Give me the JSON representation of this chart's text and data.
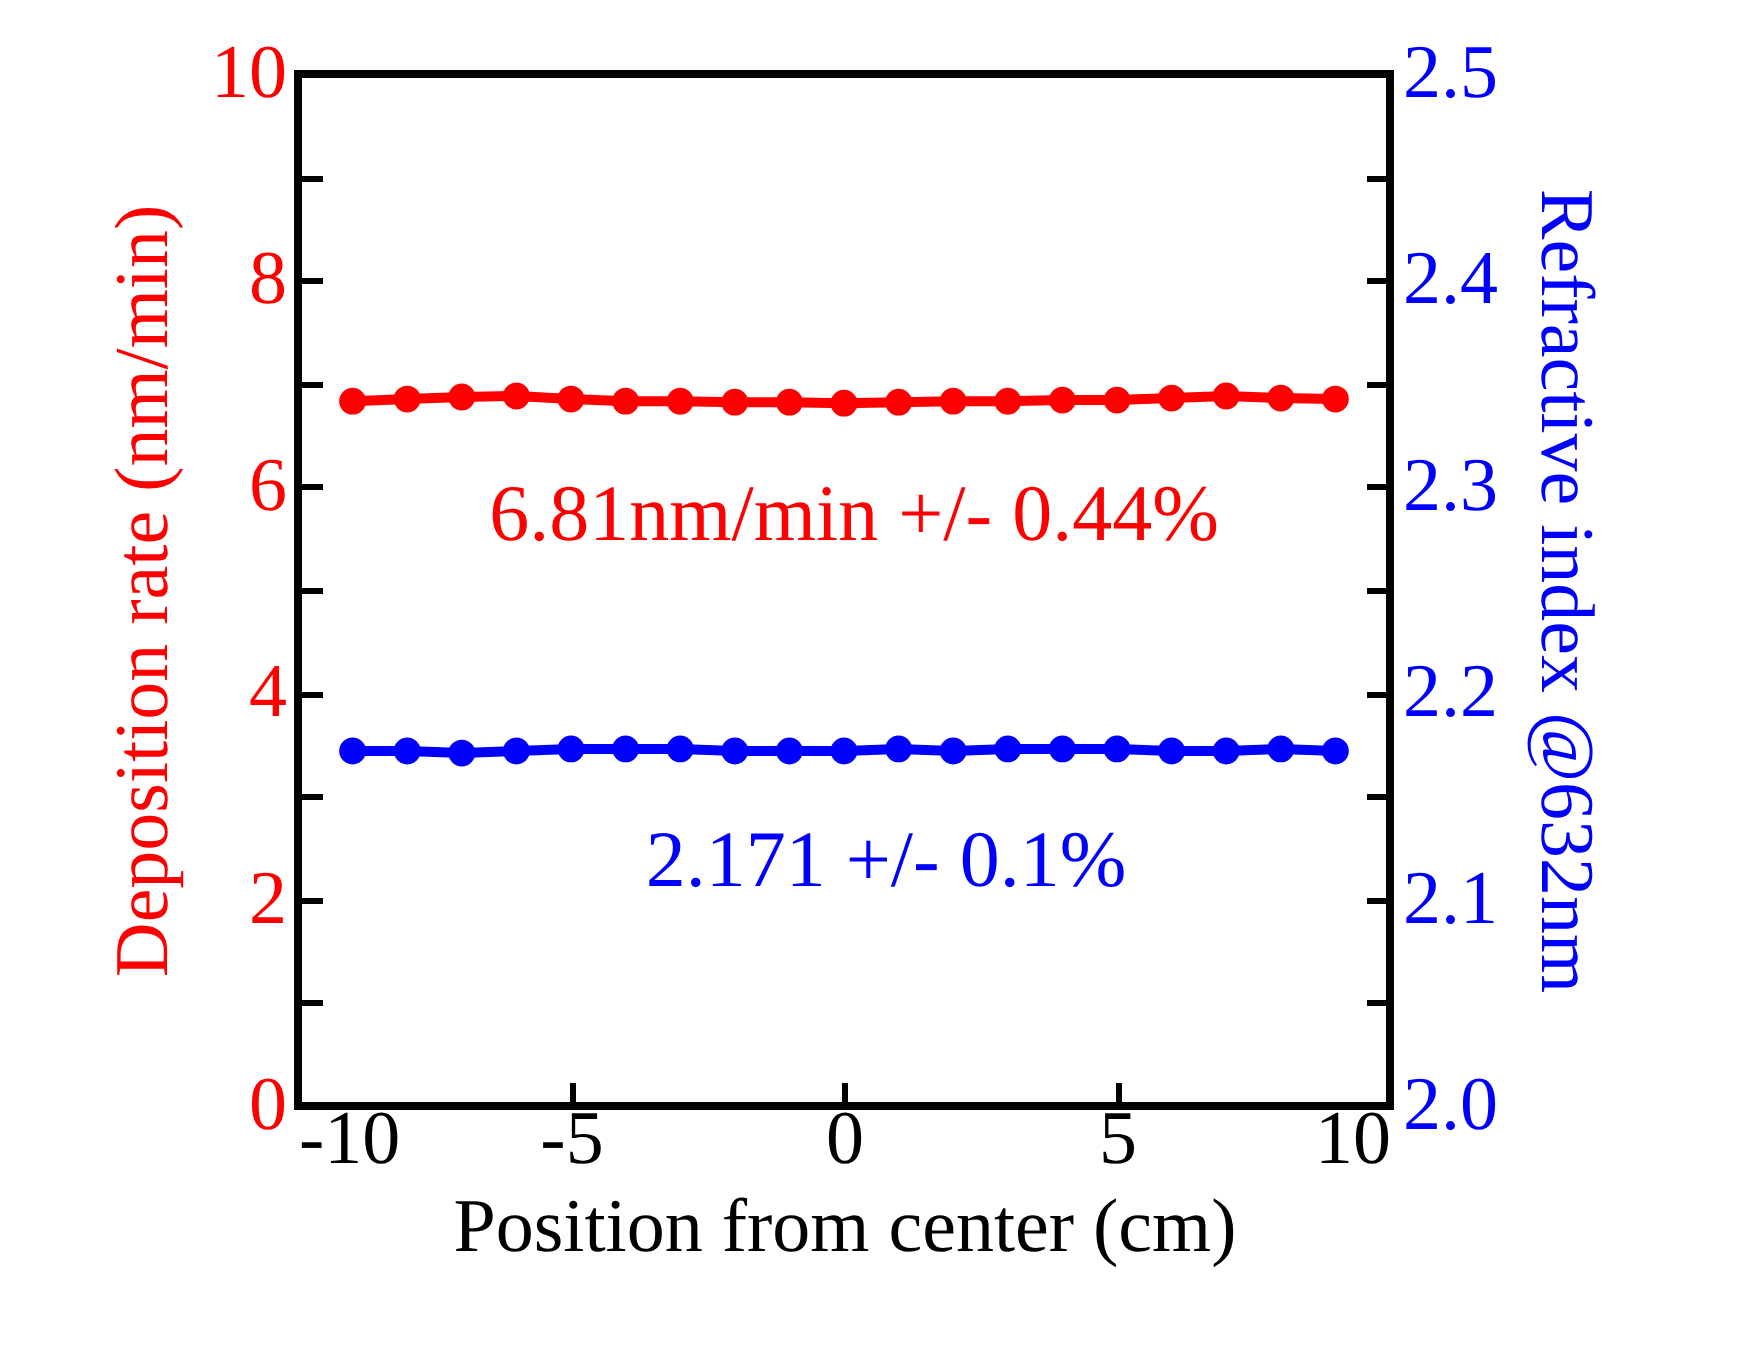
{
  "chart_data": {
    "type": "line",
    "xlabel": "Position from center (cm)",
    "ylabel": "Deposition rate (nm/min)",
    "y2label": "Refractive index @632nm",
    "x": [
      -9,
      -8,
      -7,
      -6,
      -5,
      -4,
      -3,
      -2,
      -1,
      0,
      1,
      2,
      3,
      4,
      5,
      6,
      7,
      8,
      9
    ],
    "series": [
      {
        "color": "#ff0000",
        "values": [
          6.83,
          6.85,
          6.87,
          6.88,
          6.85,
          6.83,
          6.83,
          6.82,
          6.82,
          6.81,
          6.82,
          6.83,
          6.83,
          6.84,
          6.84,
          6.86,
          6.88,
          6.86,
          6.85
        ]
      },
      {
        "color": "#0000ff",
        "axis": "y2",
        "values": [
          2.172,
          2.172,
          2.171,
          2.172,
          2.173,
          2.173,
          2.173,
          2.172,
          2.172,
          2.172,
          2.173,
          2.172,
          2.173,
          2.173,
          2.173,
          2.172,
          2.172,
          2.173,
          2.172
        ]
      }
    ],
    "xlim": [
      -10,
      10
    ],
    "xticks": [
      -10,
      -5,
      0,
      5,
      10
    ],
    "ylim": [
      0,
      10
    ],
    "yticks": [
      0,
      {
        "value": 1,
        "label": null
      },
      2,
      {
        "value": 3,
        "label": null
      },
      4,
      {
        "value": 5,
        "label": null
      },
      6,
      {
        "value": 7,
        "label": null
      },
      8,
      {
        "value": 9,
        "label": null
      },
      10
    ],
    "y2lim": [
      2.0,
      2.5
    ],
    "y2ticks": [
      {
        "value": 2.0,
        "label": "2.0"
      },
      {
        "value": 2.05,
        "label": null
      },
      {
        "value": 2.1,
        "label": "2.1"
      },
      {
        "value": 2.15,
        "label": null
      },
      {
        "value": 2.2,
        "label": "2.2"
      },
      {
        "value": 2.25,
        "label": null
      },
      {
        "value": 2.3,
        "label": "2.3"
      },
      {
        "value": 2.35,
        "label": null
      },
      {
        "value": 2.4,
        "label": "2.4"
      },
      {
        "value": 2.45,
        "label": null
      },
      {
        "value": 2.5,
        "label": "2.5"
      }
    ],
    "annotations": [
      "6.81nm/min +/- 0.44%",
      "2.171 +/- 0.1%"
    ],
    "grid": false,
    "marker": "circle",
    "line_style": "solid"
  }
}
